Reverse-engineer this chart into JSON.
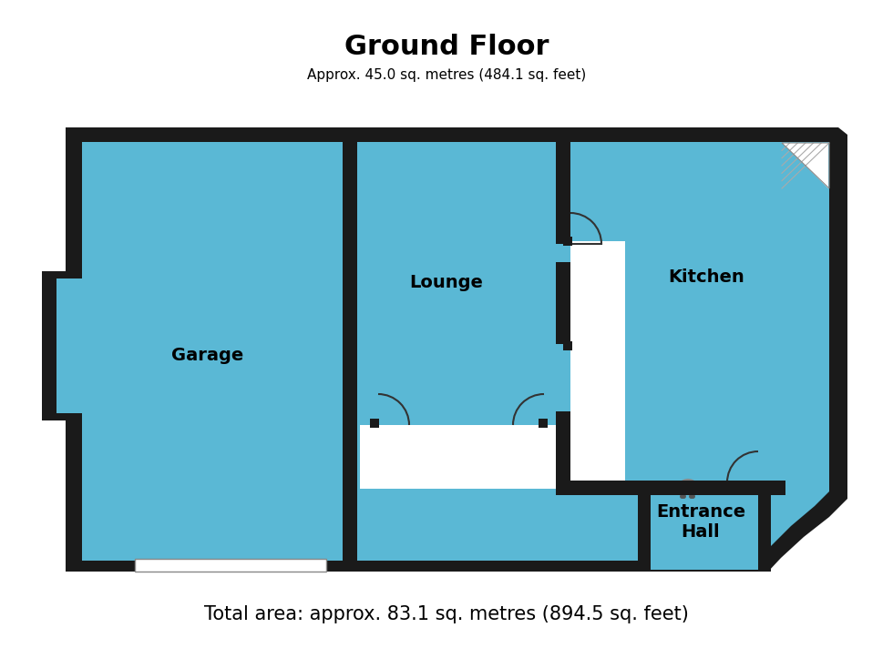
{
  "title": "Ground Floor",
  "subtitle": "Approx. 45.0 sq. metres (484.1 sq. feet)",
  "footer": "Total area: approx. 83.1 sq. metres (894.5 sq. feet)",
  "bg_color": "#ffffff",
  "wall_color": "#1a1a1a",
  "room_color": "#5ab8d5",
  "title_fontsize": 22,
  "subtitle_fontsize": 11,
  "footer_fontsize": 15,
  "label_fontsize": 14
}
